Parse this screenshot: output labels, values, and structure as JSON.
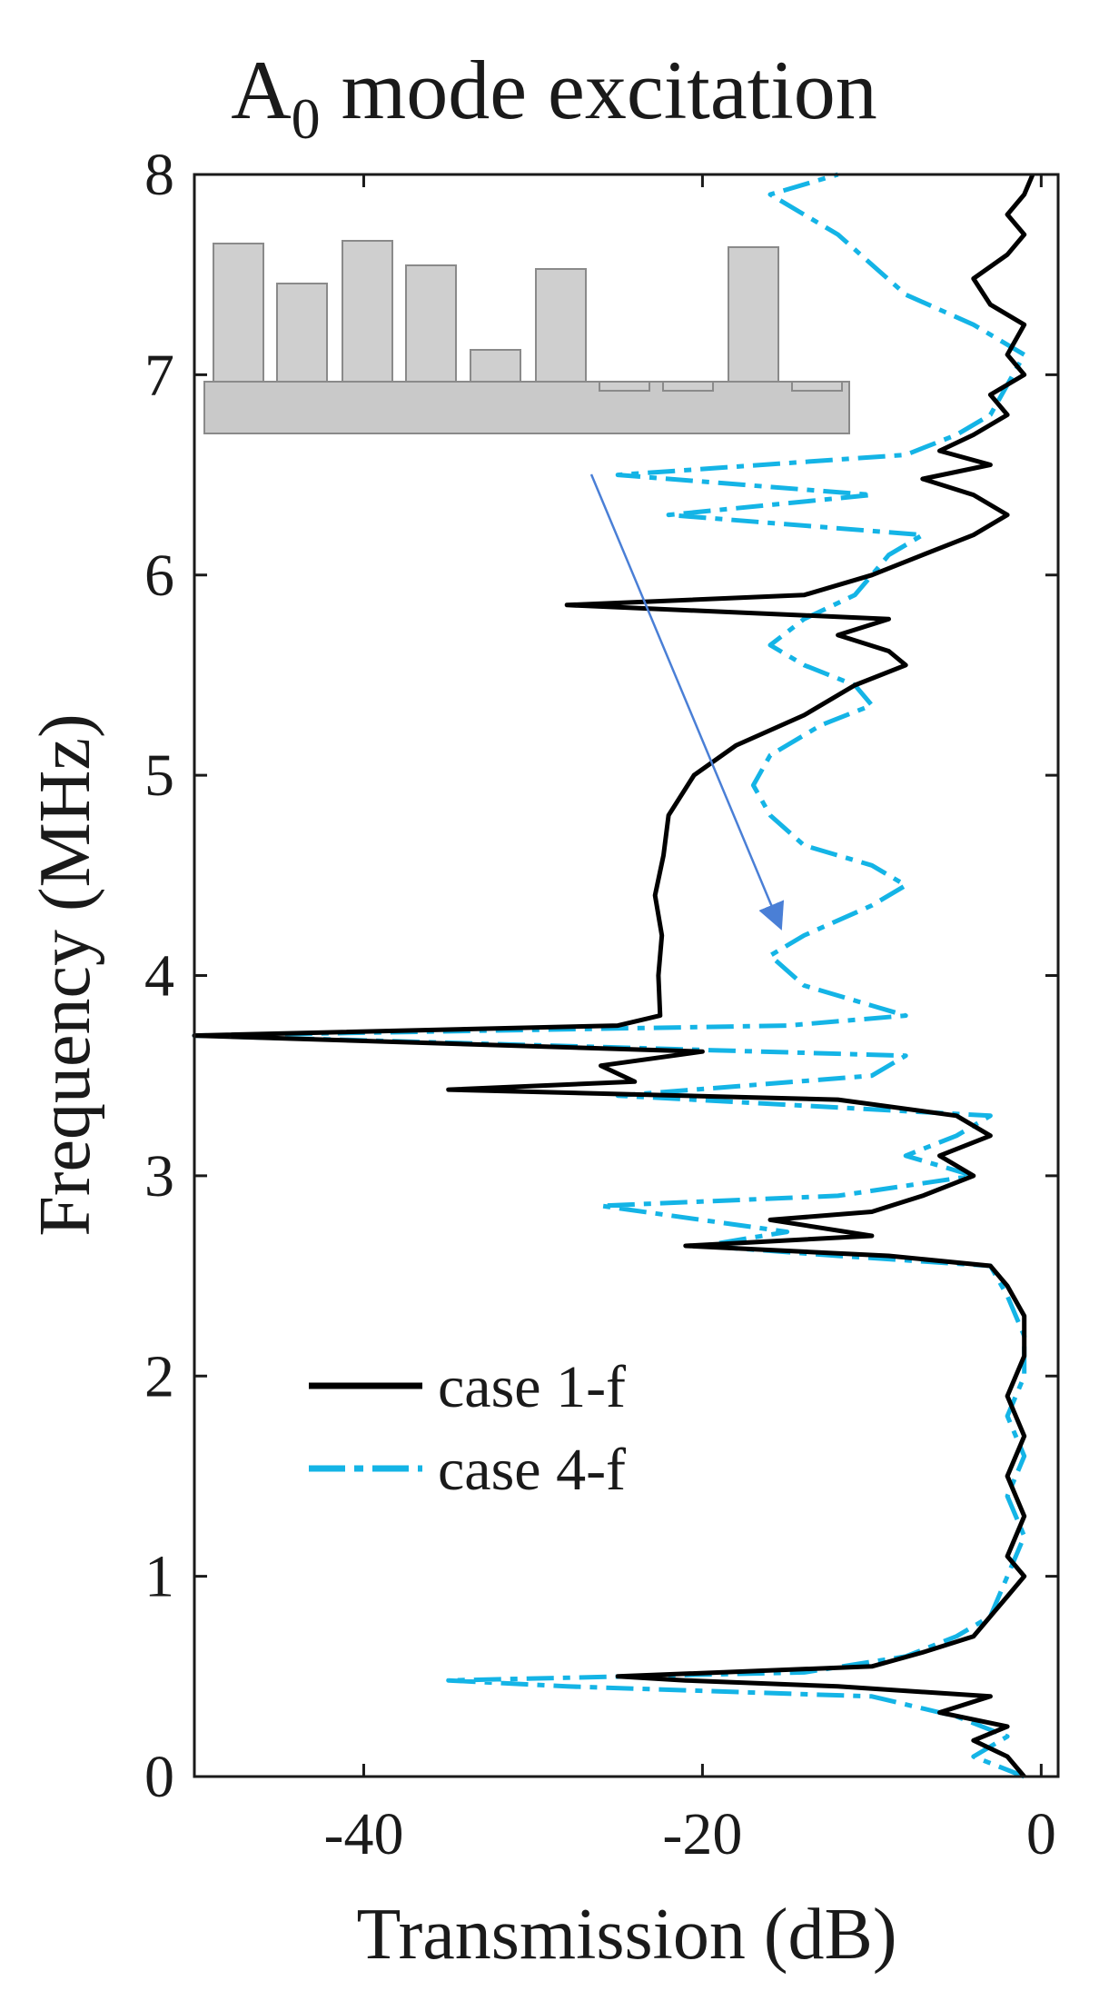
{
  "title_main": "A",
  "title_sub": "0",
  "title_rest": " mode excitation",
  "chart_data": {
    "type": "line",
    "orientation": "horizontal-values",
    "title": "A0 mode excitation",
    "xlabel": "Transmission (dB)",
    "ylabel": "Frequency (MHz)",
    "xlim": [
      -50,
      1
    ],
    "ylim": [
      0,
      8
    ],
    "xticks": [
      -40,
      -20,
      0
    ],
    "xtick_labels": [
      "-40",
      "-20",
      "0"
    ],
    "yticks": [
      0,
      1,
      2,
      3,
      4,
      5,
      6,
      7,
      8
    ],
    "ytick_labels": [
      "0",
      "1",
      "2",
      "3",
      "4",
      "5",
      "6",
      "7",
      "8"
    ],
    "grid": false,
    "legend": "lower-left",
    "colors": {
      "case1": "#000000",
      "case4": "#14b4e6",
      "arrow": "#4a7fd6",
      "inset": "#bdbdbd"
    },
    "series": [
      {
        "name": "case 1-f",
        "style": "solid",
        "points": [
          [
            -1,
            0.0
          ],
          [
            -2,
            0.1
          ],
          [
            -4,
            0.18
          ],
          [
            -2,
            0.25
          ],
          [
            -6,
            0.32
          ],
          [
            -3,
            0.4
          ],
          [
            -12,
            0.45
          ],
          [
            -21,
            0.48
          ],
          [
            -25,
            0.5
          ],
          [
            -10,
            0.55
          ],
          [
            -7,
            0.62
          ],
          [
            -4,
            0.7
          ],
          [
            -3,
            0.8
          ],
          [
            -2,
            0.9
          ],
          [
            -1,
            1.0
          ],
          [
            -2,
            1.1
          ],
          [
            -1,
            1.3
          ],
          [
            -2,
            1.5
          ],
          [
            -1,
            1.7
          ],
          [
            -2,
            1.9
          ],
          [
            -1,
            2.1
          ],
          [
            -1,
            2.3
          ],
          [
            -2,
            2.45
          ],
          [
            -3,
            2.55
          ],
          [
            -9,
            2.6
          ],
          [
            -21,
            2.65
          ],
          [
            -10,
            2.7
          ],
          [
            -16,
            2.78
          ],
          [
            -10,
            2.82
          ],
          [
            -7,
            2.9
          ],
          [
            -4,
            3.0
          ],
          [
            -6,
            3.1
          ],
          [
            -3,
            3.2
          ],
          [
            -5,
            3.3
          ],
          [
            -12,
            3.38
          ],
          [
            -35,
            3.43
          ],
          [
            -24,
            3.47
          ],
          [
            -26,
            3.55
          ],
          [
            -20,
            3.62
          ],
          [
            -50,
            3.7
          ],
          [
            -25,
            3.75
          ],
          [
            -22.5,
            3.8
          ],
          [
            -22.6,
            4.0
          ],
          [
            -22.4,
            4.2
          ],
          [
            -22.8,
            4.4
          ],
          [
            -22.3,
            4.6
          ],
          [
            -22.0,
            4.8
          ],
          [
            -20.5,
            5.0
          ],
          [
            -18,
            5.15
          ],
          [
            -14,
            5.3
          ],
          [
            -11,
            5.45
          ],
          [
            -8,
            5.55
          ],
          [
            -9,
            5.62
          ],
          [
            -12,
            5.7
          ],
          [
            -9,
            5.78
          ],
          [
            -28,
            5.85
          ],
          [
            -14,
            5.9
          ],
          [
            -10,
            6.0
          ],
          [
            -7,
            6.1
          ],
          [
            -4,
            6.2
          ],
          [
            -2,
            6.3
          ],
          [
            -4,
            6.4
          ],
          [
            -7,
            6.48
          ],
          [
            -3,
            6.55
          ],
          [
            -6,
            6.62
          ],
          [
            -4,
            6.7
          ],
          [
            -2,
            6.8
          ],
          [
            -3,
            6.9
          ],
          [
            -1,
            7.0
          ],
          [
            -2,
            7.1
          ],
          [
            -1,
            7.25
          ],
          [
            -3,
            7.35
          ],
          [
            -4,
            7.48
          ],
          [
            -2,
            7.6
          ],
          [
            -1,
            7.7
          ],
          [
            -2,
            7.8
          ],
          [
            -1,
            7.9
          ],
          [
            -0.5,
            8.0
          ]
        ]
      },
      {
        "name": "case 4-f",
        "style": "dash-dot",
        "points": [
          [
            -1,
            0.0
          ],
          [
            -4,
            0.1
          ],
          [
            -2,
            0.2
          ],
          [
            -5,
            0.3
          ],
          [
            -10,
            0.4
          ],
          [
            -28,
            0.45
          ],
          [
            -35,
            0.48
          ],
          [
            -14,
            0.52
          ],
          [
            -8,
            0.6
          ],
          [
            -5,
            0.7
          ],
          [
            -3,
            0.8
          ],
          [
            -2,
            1.0
          ],
          [
            -1,
            1.2
          ],
          [
            -2,
            1.4
          ],
          [
            -1,
            1.6
          ],
          [
            -2,
            1.8
          ],
          [
            -1,
            2.0
          ],
          [
            -1,
            2.2
          ],
          [
            -2,
            2.4
          ],
          [
            -3,
            2.55
          ],
          [
            -12,
            2.6
          ],
          [
            -20,
            2.65
          ],
          [
            -15,
            2.72
          ],
          [
            -26,
            2.85
          ],
          [
            -12,
            2.9
          ],
          [
            -4,
            3.0
          ],
          [
            -8,
            3.1
          ],
          [
            -5,
            3.2
          ],
          [
            -3,
            3.3
          ],
          [
            -25,
            3.4
          ],
          [
            -10,
            3.5
          ],
          [
            -8,
            3.6
          ],
          [
            -50,
            3.7
          ],
          [
            -15,
            3.75
          ],
          [
            -8,
            3.8
          ],
          [
            -10,
            3.85
          ],
          [
            -14,
            3.95
          ],
          [
            -16,
            4.1
          ],
          [
            -14,
            4.2
          ],
          [
            -10,
            4.35
          ],
          [
            -8,
            4.45
          ],
          [
            -10,
            4.55
          ],
          [
            -14,
            4.65
          ],
          [
            -16,
            4.8
          ],
          [
            -17,
            4.95
          ],
          [
            -16,
            5.1
          ],
          [
            -13,
            5.25
          ],
          [
            -10,
            5.35
          ],
          [
            -11,
            5.45
          ],
          [
            -14,
            5.55
          ],
          [
            -16,
            5.65
          ],
          [
            -14,
            5.78
          ],
          [
            -11,
            5.9
          ],
          [
            -10,
            6.0
          ],
          [
            -9,
            6.1
          ],
          [
            -7,
            6.2
          ],
          [
            -22,
            6.3
          ],
          [
            -10,
            6.4
          ],
          [
            -25,
            6.5
          ],
          [
            -8,
            6.6
          ],
          [
            -5,
            6.7
          ],
          [
            -3,
            6.8
          ],
          [
            -2,
            6.95
          ],
          [
            -1,
            7.1
          ],
          [
            -4,
            7.25
          ],
          [
            -8,
            7.4
          ],
          [
            -10,
            7.55
          ],
          [
            -12,
            7.7
          ],
          [
            -14,
            7.8
          ],
          [
            -16,
            7.9
          ],
          [
            -12,
            8.0
          ]
        ]
      }
    ]
  }
}
